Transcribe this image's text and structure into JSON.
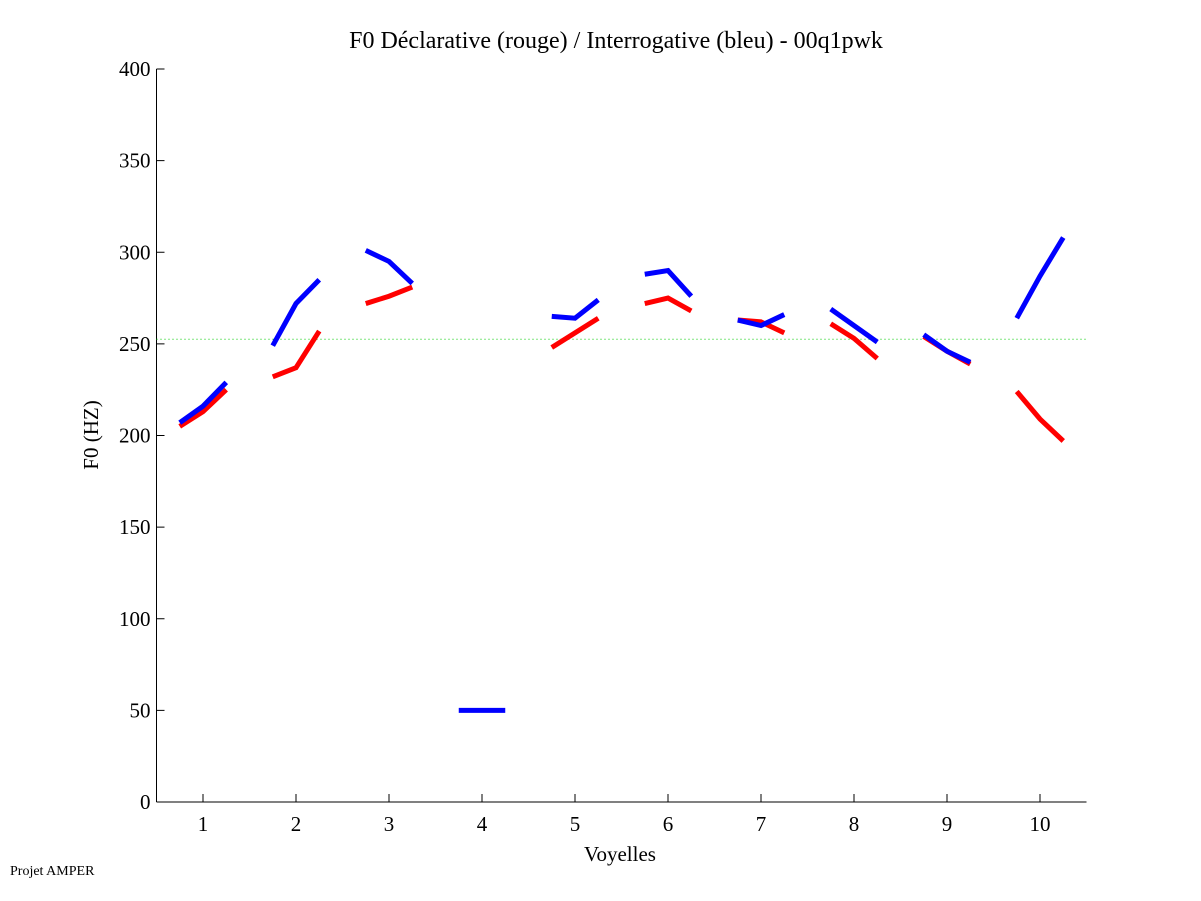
{
  "chart_data": {
    "type": "line",
    "title": "F0 Déclarative (rouge) / Interrogative (bleu) - 00q1pwk",
    "xlabel": "Voyelles",
    "ylabel": "F0 (HZ)",
    "xlim": [
      0.5,
      10.5
    ],
    "ylim": [
      0,
      400
    ],
    "xticks": [
      1,
      2,
      3,
      4,
      5,
      6,
      7,
      8,
      9,
      10
    ],
    "yticks": [
      0,
      50,
      100,
      150,
      200,
      250,
      300,
      350,
      400
    ],
    "grid": false,
    "reference_line": {
      "y": 252.5,
      "color": "#00cc00",
      "style": "dotted"
    },
    "series": [
      {
        "name": "Déclarative (rouge)",
        "color": "#ff0000",
        "segments": [
          {
            "vowel": 1,
            "values": [
              205,
              213,
              225
            ]
          },
          {
            "vowel": 2,
            "values": [
              232,
              237,
              257
            ]
          },
          {
            "vowel": 3,
            "values": [
              272,
              276,
              281
            ]
          },
          {
            "vowel": 5,
            "values": [
              248,
              256,
              264
            ]
          },
          {
            "vowel": 6,
            "values": [
              272,
              275,
              268
            ]
          },
          {
            "vowel": 7,
            "values": [
              263,
              262,
              256
            ]
          },
          {
            "vowel": 8,
            "values": [
              261,
              253,
              242
            ]
          },
          {
            "vowel": 9,
            "values": [
              254,
              246,
              239
            ]
          },
          {
            "vowel": 10,
            "values": [
              224,
              209,
              197
            ]
          }
        ]
      },
      {
        "name": "Interrogative (bleu)",
        "color": "#0000ff",
        "segments": [
          {
            "vowel": 1,
            "values": [
              207,
              216,
              229
            ]
          },
          {
            "vowel": 2,
            "values": [
              249,
              272,
              285
            ]
          },
          {
            "vowel": 3,
            "values": [
              301,
              295,
              283
            ]
          },
          {
            "vowel": 4,
            "values": [
              50,
              50,
              50
            ]
          },
          {
            "vowel": 5,
            "values": [
              265,
              264,
              274
            ]
          },
          {
            "vowel": 6,
            "values": [
              288,
              290,
              276
            ]
          },
          {
            "vowel": 7,
            "values": [
              263,
              260,
              266
            ]
          },
          {
            "vowel": 8,
            "values": [
              269,
              260,
              251
            ]
          },
          {
            "vowel": 9,
            "values": [
              255,
              246,
              240
            ]
          },
          {
            "vowel": 10,
            "values": [
              264,
              287,
              308
            ]
          }
        ]
      }
    ]
  },
  "footer": "Projet AMPER"
}
